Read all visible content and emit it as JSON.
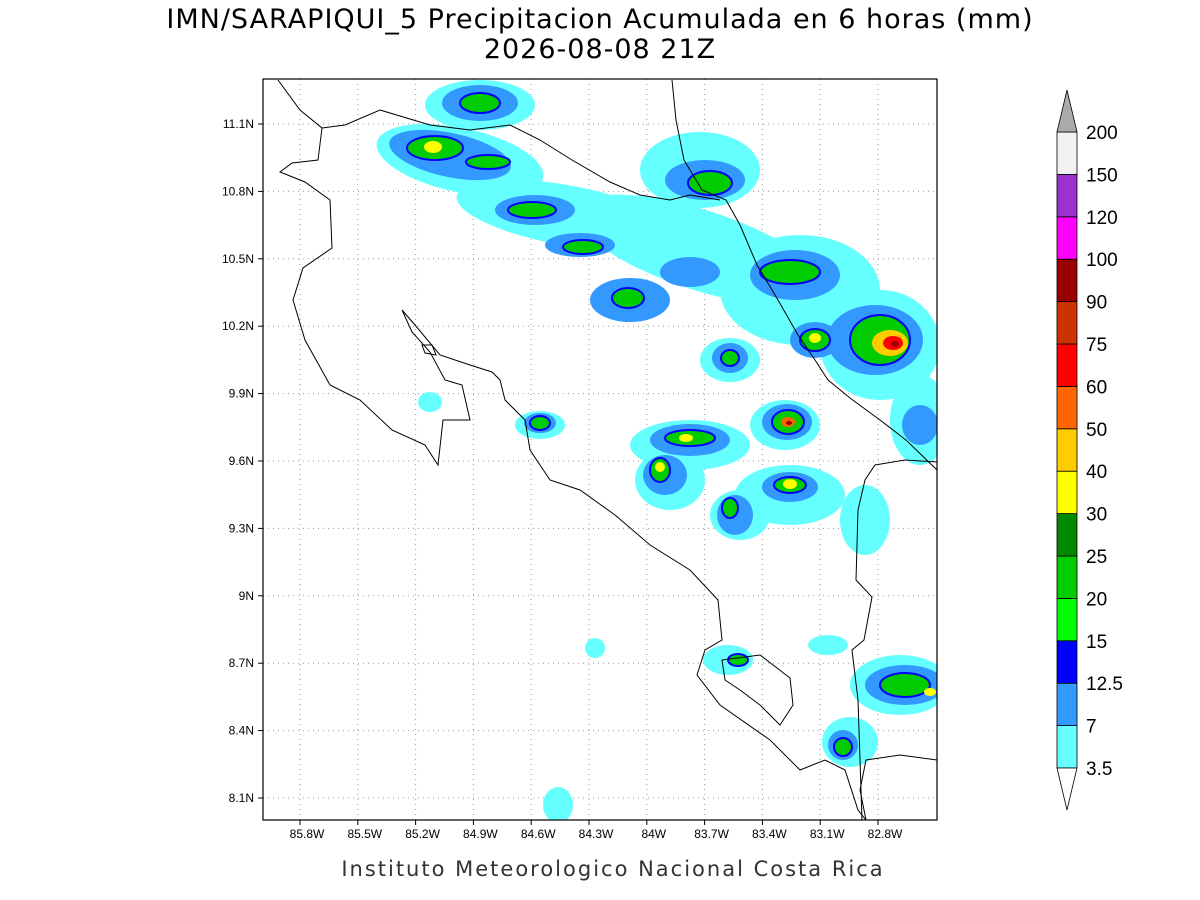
{
  "title": "IMN/SARAPIQUI_5 Precipitacion Acumulada en 6 horas (mm)",
  "subtitle": "2026-08-08 21Z",
  "map": {
    "lat_ticks": [
      "11.1N",
      "10.8N",
      "10.5N",
      "10.2N",
      "9.9N",
      "9.6N",
      "9.3N",
      "9N",
      "8.7N",
      "8.4N",
      "8.1N"
    ],
    "lon_ticks": [
      "85.8W",
      "85.5W",
      "85.2W",
      "84.9W",
      "84.6W",
      "84.3W",
      "84W",
      "83.7W",
      "83.4W",
      "83.1W",
      "82.8W"
    ]
  },
  "colorbar": {
    "levels": [
      "3.5",
      "7",
      "12.5",
      "15",
      "20",
      "25",
      "30",
      "40",
      "50",
      "60",
      "75",
      "90",
      "100",
      "120",
      "150",
      "200"
    ],
    "colors": [
      "#66ffff",
      "#3399ff",
      "#0000ff",
      "#00ff00",
      "#00cc00",
      "#008800",
      "#ffff00",
      "#ffcc00",
      "#ff6600",
      "#ff0000",
      "#cc3300",
      "#990000",
      "#ff00ff",
      "#9933cc",
      "#f2f2f2"
    ],
    "below_color": "#ffffff",
    "above_color": "#aaaaaa"
  },
  "footer": "Instituto Meteorologico Nacional Costa Rica"
}
